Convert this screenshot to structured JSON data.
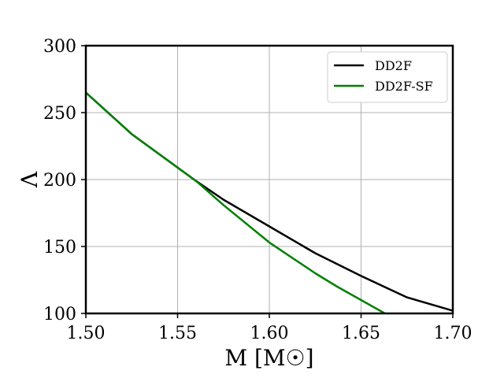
{
  "chart_data": {
    "type": "line",
    "title": "",
    "xlabel": "M [M☉]",
    "ylabel": "Λ",
    "xlim": [
      1.5,
      1.7
    ],
    "ylim": [
      100,
      300
    ],
    "xticks": [
      "1.50",
      "1.55",
      "1.60",
      "1.65",
      "1.70"
    ],
    "yticks": [
      "100",
      "150",
      "200",
      "250",
      "300"
    ],
    "grid": true,
    "legend_position": "top-right",
    "series": [
      {
        "name": "DD2F",
        "color": "#000000",
        "x": [
          1.5,
          1.525,
          1.55,
          1.56,
          1.575,
          1.6,
          1.625,
          1.65,
          1.675,
          1.7
        ],
        "y": [
          265,
          234,
          209,
          199,
          185,
          165,
          145,
          128,
          112,
          102
        ]
      },
      {
        "name": "DD2F-SF",
        "color": "#008000",
        "x": [
          1.5,
          1.525,
          1.55,
          1.56,
          1.575,
          1.6,
          1.625,
          1.637,
          1.65,
          1.663
        ],
        "y": [
          265,
          234,
          209,
          199,
          181,
          153,
          130,
          120,
          110,
          100
        ]
      }
    ]
  }
}
